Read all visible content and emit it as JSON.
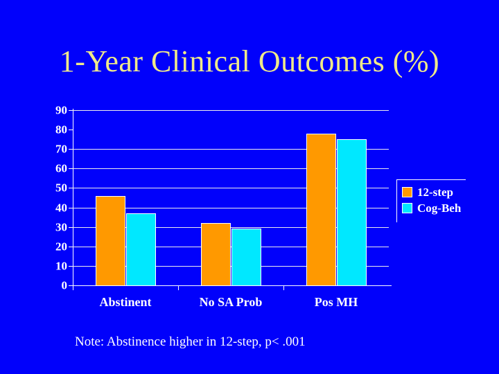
{
  "slide": {
    "title": "1-Year Clinical Outcomes (%)",
    "note": "Note: Abstinence higher in 12-step, p< .001",
    "background_color": "#0101FB",
    "title_color": "#EFE98A"
  },
  "chart_data": {
    "type": "bar",
    "title": "",
    "xlabel": "",
    "ylabel": "",
    "categories": [
      "Abstinent",
      "No SA Prob",
      "Pos MH"
    ],
    "series": [
      {
        "name": "12-step",
        "color": "#FF9900",
        "values": [
          46,
          32,
          78
        ]
      },
      {
        "name": "Cog-Beh",
        "color": "#00E8FF",
        "values": [
          37,
          29,
          75
        ]
      }
    ],
    "ylim": [
      0,
      90
    ],
    "yticks": [
      90,
      80,
      70,
      60,
      50,
      40,
      30,
      20,
      10,
      0
    ],
    "gridlines_shown_at": [
      90,
      70,
      60,
      50,
      40,
      30,
      20,
      10
    ],
    "grid_on": true,
    "legend_position": "right",
    "axis_color": "#FFFFFF",
    "grid_color": "#EDEDED",
    "text_color": "#FFFFFF"
  }
}
